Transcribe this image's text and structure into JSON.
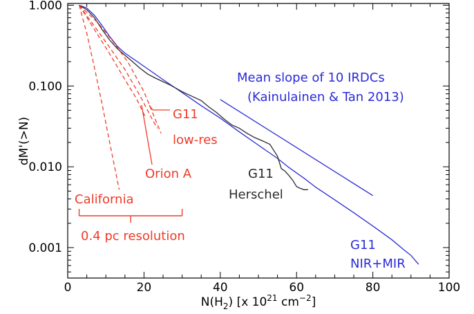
{
  "chart_data": {
    "type": "line",
    "title": "",
    "xlabel": {
      "prefix": "N(H",
      "sub": "2",
      "mid": ") [x 10",
      "sup1": "21",
      "mid2": " cm",
      "sup2": "−2",
      "suffix": "]"
    },
    "ylabel": "dM'(>N)",
    "xlim": [
      0,
      100
    ],
    "ylim": [
      0.00042,
      1.05
    ],
    "yscale": "log",
    "x_ticks": [
      0,
      20,
      40,
      60,
      80,
      100
    ],
    "x_tick_labels": [
      "0",
      "20",
      "40",
      "60",
      "80",
      "100"
    ],
    "y_ticks": [
      0.001,
      0.01,
      0.1,
      1
    ],
    "y_tick_labels": [
      "0.001",
      "0.010",
      "0.100",
      "1.000"
    ],
    "colors": {
      "blue": "#2a2ad8",
      "red": "#f03a28",
      "black": "#2a2a2a"
    },
    "series": [
      {
        "name": "G11 NIR+MIR",
        "color": "#2a2ad8",
        "style": "solid",
        "x": [
          3,
          5,
          7,
          9,
          11,
          13,
          15,
          20,
          25,
          30,
          35,
          40,
          45,
          50,
          55,
          58,
          62,
          65,
          70,
          75,
          80,
          85,
          88,
          90,
          92
        ],
        "y": [
          1.0,
          0.92,
          0.75,
          0.56,
          0.41,
          0.31,
          0.255,
          0.175,
          0.12,
          0.083,
          0.057,
          0.04,
          0.027,
          0.0185,
          0.0127,
          0.0098,
          0.0072,
          0.0056,
          0.0039,
          0.0027,
          0.00185,
          0.00125,
          0.00095,
          0.0008,
          0.00062
        ]
      },
      {
        "name": "G11 Herschel",
        "color": "#2a2a2a",
        "style": "solid",
        "x": [
          3,
          5,
          7,
          9,
          11,
          13,
          15,
          17,
          19,
          21,
          23,
          25,
          27,
          30,
          33,
          35,
          37,
          39,
          41,
          43,
          45,
          47,
          49,
          51,
          53,
          54,
          55,
          56,
          57,
          58,
          59,
          60,
          61,
          62,
          63
        ],
        "y": [
          1.0,
          0.88,
          0.7,
          0.5,
          0.37,
          0.29,
          0.24,
          0.2,
          0.165,
          0.14,
          0.125,
          0.113,
          0.102,
          0.085,
          0.073,
          0.066,
          0.055,
          0.047,
          0.039,
          0.033,
          0.03,
          0.026,
          0.023,
          0.021,
          0.019,
          0.016,
          0.0135,
          0.0095,
          0.0088,
          0.0078,
          0.0068,
          0.0057,
          0.0054,
          0.0052,
          0.0052
        ]
      },
      {
        "name": "Mean slope of 10 IRDCs",
        "color": "#2a2ad8",
        "style": "solid",
        "x": [
          40,
          80
        ],
        "y": [
          0.068,
          0.0044
        ]
      },
      {
        "name": "G11 low-res",
        "color": "#f03a28",
        "style": "dashed",
        "x": [
          3,
          8,
          12,
          16,
          20,
          23,
          24.5
        ],
        "y": [
          1.0,
          0.6,
          0.35,
          0.19,
          0.085,
          0.038,
          0.026
        ]
      },
      {
        "name": "G11 low-res (2)",
        "color": "#f03a28",
        "style": "dashed",
        "x": [
          3,
          7,
          11,
          15,
          19,
          22,
          23.5
        ],
        "y": [
          1.0,
          0.55,
          0.3,
          0.16,
          0.075,
          0.04,
          0.03
        ]
      },
      {
        "name": "Orion A",
        "color": "#f03a28",
        "style": "dashed",
        "x": [
          3,
          7,
          11,
          15,
          18,
          20.5
        ],
        "y": [
          1.0,
          0.5,
          0.25,
          0.12,
          0.07,
          0.04
        ]
      },
      {
        "name": "California",
        "color": "#f03a28",
        "style": "dashed",
        "x": [
          3,
          5,
          7,
          9,
          11,
          13.5
        ],
        "y": [
          1.0,
          0.45,
          0.17,
          0.06,
          0.02,
          0.0052
        ]
      }
    ],
    "annotations": [
      {
        "text": "Mean slope of 10 IRDCs",
        "color": "#2a2ad8"
      },
      {
        "text": "(Kainulainen & Tan 2013)",
        "color": "#2a2ad8"
      },
      {
        "text": "G11",
        "color": "#f03a28"
      },
      {
        "text": "low-res",
        "color": "#f03a28"
      },
      {
        "text": "Orion A",
        "color": "#f03a28"
      },
      {
        "text": "California",
        "color": "#f03a28"
      },
      {
        "text": "0.4 pc resolution",
        "color": "#f03a28"
      },
      {
        "text": "G11",
        "color": "#2a2a2a"
      },
      {
        "text": "Herschel",
        "color": "#2a2a2a"
      },
      {
        "text": "G11",
        "color": "#2a2ad8"
      },
      {
        "text": "NIR+MIR",
        "color": "#2a2ad8"
      }
    ],
    "scale_bar": {
      "x_start": 3,
      "x_end": 30,
      "label": "0.4 pc resolution"
    },
    "grid": false,
    "legend": "none"
  }
}
